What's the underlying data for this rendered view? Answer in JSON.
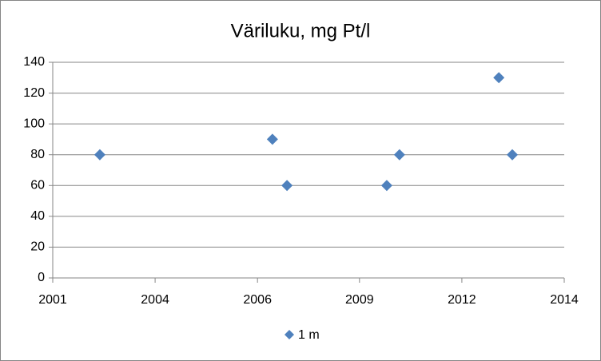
{
  "chart_data": {
    "type": "scatter",
    "title": "Väriluku, mg Pt/l",
    "series": [
      {
        "name": "1 m",
        "color": "#4f81bd",
        "x": [
          2002.56,
          2007.18,
          2007.57,
          2010.24,
          2010.58,
          2013.24,
          2013.6
        ],
        "values": [
          80,
          90,
          60,
          60,
          80,
          130,
          80
        ]
      }
    ],
    "xlim": [
      2001.3,
      2014.99
    ],
    "xticks": [
      {
        "value": 2001.3,
        "label": "2001"
      },
      {
        "value": 2004.04,
        "label": "2004"
      },
      {
        "value": 2006.78,
        "label": "2006"
      },
      {
        "value": 2009.51,
        "label": "2009"
      },
      {
        "value": 2012.25,
        "label": "2012"
      },
      {
        "value": 2014.99,
        "label": "2014"
      }
    ],
    "ylim": [
      0,
      140
    ],
    "yticks": [
      0,
      20,
      40,
      60,
      80,
      100,
      120,
      140
    ],
    "grid": true,
    "legend": "bottom"
  }
}
